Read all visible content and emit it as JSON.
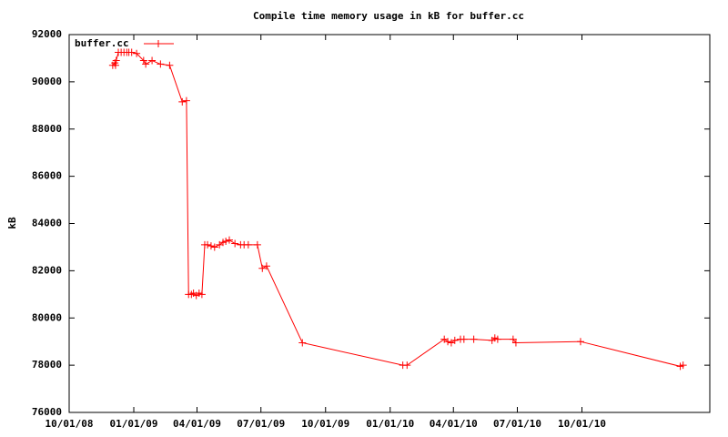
{
  "chart_data": {
    "type": "line",
    "title": "Compile time memory usage in kB for buffer.cc",
    "y_label": "kB",
    "x": [
      "2008-12-02",
      "2008-12-05",
      "2008-12-06",
      "2008-12-07",
      "2008-12-10",
      "2008-12-14",
      "2008-12-18",
      "2008-12-22",
      "2008-12-25",
      "2008-12-29",
      "2009-01-05",
      "2009-01-15",
      "2009-01-18",
      "2009-01-27",
      "2009-02-08",
      "2009-02-21",
      "2009-03-11",
      "2009-03-17",
      "2009-03-20",
      "2009-03-24",
      "2009-03-27",
      "2009-03-31",
      "2009-04-04",
      "2009-04-08",
      "2009-04-12",
      "2009-04-16",
      "2009-04-21",
      "2009-04-26",
      "2009-05-03",
      "2009-05-08",
      "2009-05-12",
      "2009-05-17",
      "2009-05-25",
      "2009-06-02",
      "2009-06-07",
      "2009-06-13",
      "2009-06-26",
      "2009-07-03",
      "2009-07-09",
      "2009-08-29",
      "2010-01-19",
      "2010-01-25",
      "2010-03-19",
      "2010-03-24",
      "2010-03-29",
      "2010-04-03",
      "2010-04-11",
      "2010-04-16",
      "2010-04-30",
      "2010-05-26",
      "2010-05-30",
      "2010-06-03",
      "2010-06-25",
      "2010-06-29",
      "2010-09-29",
      "2011-02-18",
      "2011-02-22"
    ],
    "series": [
      {
        "name": "buffer.cc",
        "color": "#ff0000",
        "values": [
          90700,
          90800,
          90700,
          90900,
          91250,
          91250,
          91250,
          91250,
          91250,
          91250,
          91200,
          90900,
          90750,
          90900,
          90750,
          90700,
          89150,
          89200,
          81000,
          81000,
          81050,
          80950,
          81050,
          81000,
          83100,
          83100,
          83050,
          83000,
          83100,
          83200,
          83250,
          83300,
          83150,
          83100,
          83100,
          83100,
          83100,
          82100,
          82200,
          78950,
          78000,
          78000,
          79100,
          79000,
          78950,
          79050,
          79100,
          79100,
          79100,
          79050,
          79150,
          79100,
          79100,
          78950,
          79000,
          77950,
          78000
        ]
      }
    ],
    "xlim": [
      "2008-10-01",
      "2011-04-01"
    ],
    "xticks": [
      {
        "value": "2008-10-01",
        "label": "10/01/08"
      },
      {
        "value": "2009-01-01",
        "label": "01/01/09"
      },
      {
        "value": "2009-04-01",
        "label": "04/01/09"
      },
      {
        "value": "2009-07-01",
        "label": "07/01/09"
      },
      {
        "value": "2009-10-01",
        "label": "10/01/09"
      },
      {
        "value": "2010-01-01",
        "label": "01/01/10"
      },
      {
        "value": "2010-04-01",
        "label": "04/01/10"
      },
      {
        "value": "2010-07-01",
        "label": "07/01/10"
      },
      {
        "value": "2010-10-01",
        "label": "10/01/10"
      }
    ],
    "ylim": [
      76000,
      92000
    ],
    "yticks": [
      76000,
      78000,
      80000,
      82000,
      84000,
      86000,
      88000,
      90000,
      92000
    ],
    "legend": "top-left",
    "grid": false
  }
}
